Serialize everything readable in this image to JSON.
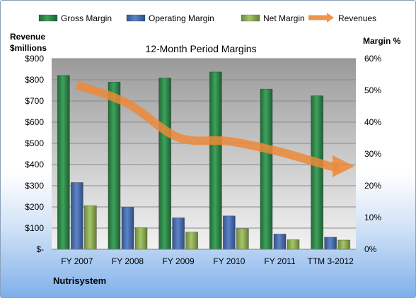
{
  "chart_data": {
    "type": "bar",
    "title": "12-Month Period Margins",
    "company": "Nutrisystem",
    "categories": [
      "FY 2007",
      "FY 2008",
      "FY 2009",
      "FY 2010",
      "FY 2011",
      "TTM 3-2012"
    ],
    "left_axis": {
      "label_line1": "Revenue",
      "label_line2": "$millions",
      "range": [
        0,
        900
      ],
      "ticks": [
        "$-",
        "$100",
        "$200",
        "$300",
        "$400",
        "$500",
        "$600",
        "$700",
        "$800",
        "$900"
      ]
    },
    "right_axis": {
      "label": "Margin %",
      "range": [
        0,
        60
      ],
      "ticks": [
        "0%",
        "10%",
        "20%",
        "30%",
        "40%",
        "50%",
        "60%"
      ]
    },
    "series": [
      {
        "name": "Gross Margin",
        "axis": "right",
        "color": "#2f8a4a",
        "values": [
          54.7,
          52.6,
          53.9,
          55.8,
          50.4,
          48.3
        ]
      },
      {
        "name": "Operating Margin",
        "axis": "right",
        "color": "#4a6fb2",
        "values": [
          21.0,
          13.2,
          9.9,
          10.5,
          4.8,
          3.8
        ]
      },
      {
        "name": "Net Margin",
        "axis": "right",
        "color": "#8fb255",
        "values": [
          13.7,
          6.8,
          5.4,
          6.5,
          3.0,
          2.9
        ]
      },
      {
        "name": "Revenues",
        "axis": "left",
        "type": "line",
        "color": "#ec8a3a",
        "values": [
          776,
          688,
          528,
          510,
          460,
          392
        ]
      }
    ],
    "legend_position": "top",
    "grid": true
  }
}
